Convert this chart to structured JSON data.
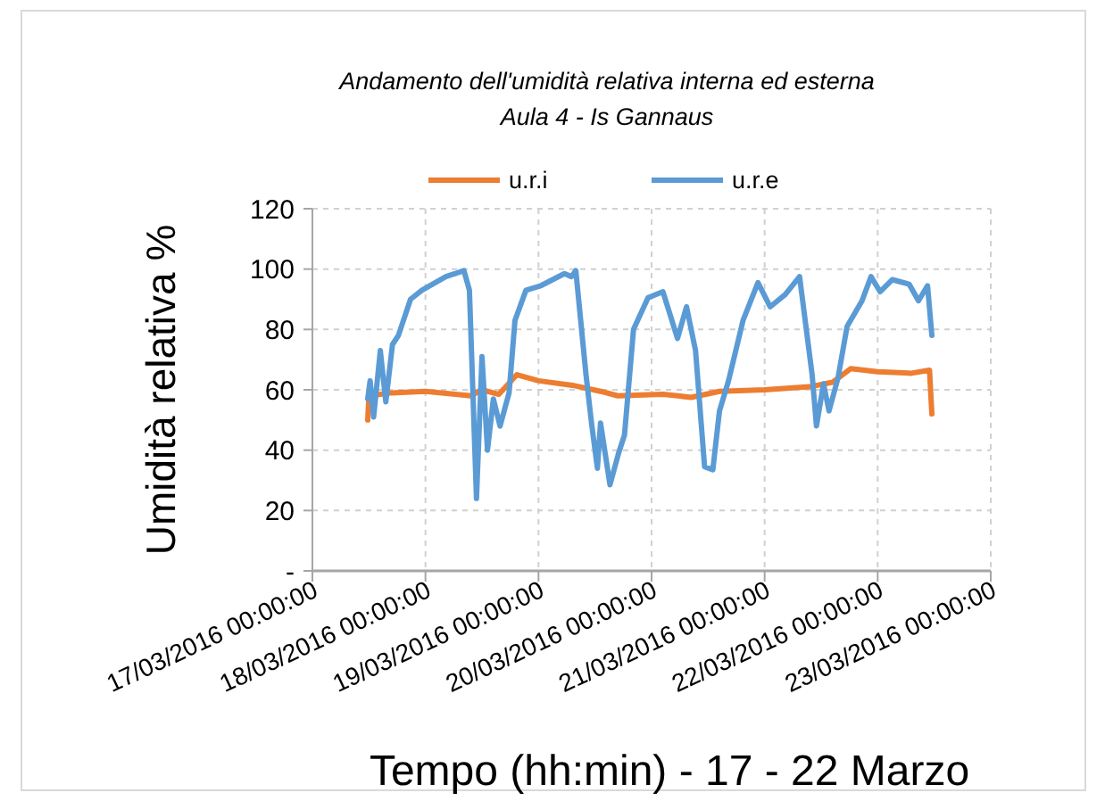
{
  "chart_data": {
    "type": "line",
    "title": "Andamento dell'umidità relativa interna ed esterna",
    "subtitle": "Aula 4 - Is Gannaus",
    "xlabel": "Tempo (hh:min) - 17 - 22 Marzo",
    "ylabel": "Umidità relativa %",
    "xlim": [
      "2016-03-17",
      "2016-03-23"
    ],
    "xticks": [
      {
        "value": "2016-03-17",
        "label": "17/03/2016 00:00:00"
      },
      {
        "value": "2016-03-18",
        "label": "18/03/2016 00:00:00"
      },
      {
        "value": "2016-03-19",
        "label": "19/03/2016 00:00:00"
      },
      {
        "value": "2016-03-20",
        "label": "20/03/2016 00:00:00"
      },
      {
        "value": "2016-03-21",
        "label": "21/03/2016 00:00:00"
      },
      {
        "value": "2016-03-22",
        "label": "22/03/2016 00:00:00"
      },
      {
        "value": "2016-03-23",
        "label": "23/03/2016 00:00:00"
      }
    ],
    "ylim": [
      0,
      120
    ],
    "yticks": [
      {
        "value": 0,
        "label": "-"
      },
      20,
      40,
      60,
      80,
      100,
      120
    ],
    "grid": true,
    "legend": "top",
    "line_style": "solid",
    "marker": "none",
    "series": [
      {
        "name": "u.r.i",
        "color": "#ed7d31",
        "x": [
          "2016-03-17T11:45",
          "2016-03-17T12:00",
          "2016-03-17T16:50",
          "2016-03-18T00:00",
          "2016-03-18T09:35",
          "2016-03-18T12:00",
          "2016-03-18T15:35",
          "2016-03-18T19:25",
          "2016-03-19T00:00",
          "2016-03-19T07:10",
          "2016-03-19T13:10",
          "2016-03-19T16:50",
          "2016-03-20T02:25",
          "2016-03-20T08:25",
          "2016-03-20T14:25",
          "2016-03-21T00:00",
          "2016-03-21T09:35",
          "2016-03-21T14:25",
          "2016-03-21T18:15",
          "2016-03-22T00:00",
          "2016-03-22T07:10",
          "2016-03-22T11:00",
          "2016-03-22T11:30"
        ],
        "values": [
          50,
          58,
          59,
          59.5,
          58,
          60,
          58.5,
          65,
          63,
          61.5,
          59.5,
          58,
          58.5,
          57.5,
          59.5,
          60,
          61,
          62.5,
          67,
          66,
          65.5,
          66.5,
          52
        ]
      },
      {
        "name": "u.r.e",
        "color": "#5b9bd5",
        "x": [
          "2016-03-17T11:45",
          "2016-03-17T12:15",
          "2016-03-17T13:00",
          "2016-03-17T14:25",
          "2016-03-17T15:35",
          "2016-03-17T17:00",
          "2016-03-17T18:15",
          "2016-03-17T20:50",
          "2016-03-17T23:15",
          "2016-03-18T04:20",
          "2016-03-18T08:10",
          "2016-03-18T09:20",
          "2016-03-18T10:50",
          "2016-03-18T12:00",
          "2016-03-18T13:10",
          "2016-03-18T14:25",
          "2016-03-18T15:50",
          "2016-03-18T17:45",
          "2016-03-18T19:00",
          "2016-03-18T21:20",
          "2016-03-19T00:30",
          "2016-03-19T05:30",
          "2016-03-19T07:00",
          "2016-03-19T07:55",
          "2016-03-19T10:05",
          "2016-03-19T11:15",
          "2016-03-19T12:30",
          "2016-03-19T13:10",
          "2016-03-19T15:10",
          "2016-03-19T17:00",
          "2016-03-19T18:15",
          "2016-03-19T20:10",
          "2016-03-19T23:15",
          "2016-03-20T02:25",
          "2016-03-20T05:30",
          "2016-03-20T07:25",
          "2016-03-20T09:20",
          "2016-03-20T11:15",
          "2016-03-20T13:00",
          "2016-03-20T14:25",
          "2016-03-20T16:20",
          "2016-03-20T19:25",
          "2016-03-20T22:35",
          "2016-03-21T01:10",
          "2016-03-21T04:20",
          "2016-03-21T07:25",
          "2016-03-21T10:05",
          "2016-03-21T11:00",
          "2016-03-21T12:30",
          "2016-03-21T13:40",
          "2016-03-21T15:35",
          "2016-03-21T17:30",
          "2016-03-21T20:40",
          "2016-03-21T22:35",
          "2016-03-22T00:30",
          "2016-03-22T03:05",
          "2016-03-22T06:40",
          "2016-03-22T08:40",
          "2016-03-22T10:35",
          "2016-03-22T11:30"
        ],
        "values": [
          57,
          63,
          51,
          73,
          56,
          75,
          78,
          90,
          93,
          97.5,
          99.5,
          93,
          24,
          71,
          40,
          57,
          48,
          59,
          83,
          93,
          94.5,
          98.5,
          97.5,
          99.5,
          65,
          49,
          34,
          49,
          28.5,
          39,
          45,
          80,
          90.5,
          92.5,
          77,
          87.5,
          73,
          34.5,
          33.5,
          53,
          63,
          83,
          95.5,
          87.5,
          91.5,
          97.5,
          65,
          48,
          62,
          53,
          64,
          81,
          89.5,
          97.5,
          92.5,
          96.5,
          95,
          89.5,
          94.5,
          78
        ]
      }
    ]
  }
}
